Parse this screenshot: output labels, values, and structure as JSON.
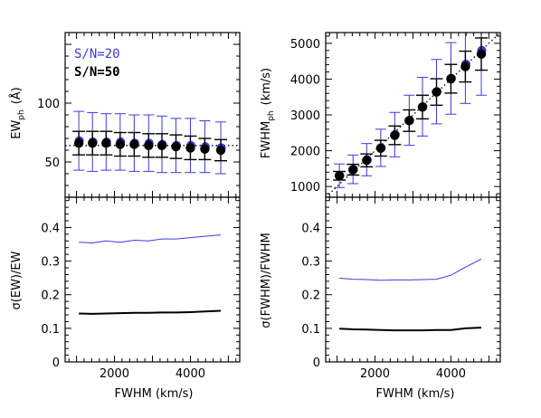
{
  "chart_data": [
    {
      "type": "scatter",
      "panel": "top-left",
      "ylabel_main": "EW",
      "ylabel_sub": "ph",
      "ylabel_unit": "(Å)",
      "xlim": [
        700,
        5300
      ],
      "ylim": [
        20,
        160
      ],
      "yticks": [
        50,
        100
      ],
      "reference_line": {
        "style": "dotted",
        "points": [
          [
            700,
            64
          ],
          [
            5300,
            64
          ]
        ]
      },
      "legend": [
        {
          "label": "S/N=20",
          "color": "#3a3ae0"
        },
        {
          "label": "S/N=50",
          "color": "#000000"
        }
      ],
      "series": [
        {
          "name": "S/N=20",
          "color": "#3a3ae0",
          "x": [
            1060,
            1420,
            1780,
            2150,
            2520,
            2900,
            3250,
            3620,
            4000,
            4380,
            4800
          ],
          "y": [
            68,
            67,
            67,
            67,
            66,
            66,
            65,
            64,
            64,
            63,
            62
          ],
          "yerr": [
            25,
            25,
            24,
            24,
            24,
            24,
            24,
            23,
            23,
            22,
            22
          ]
        },
        {
          "name": "S/N=50",
          "color": "#000000",
          "x": [
            1060,
            1420,
            1780,
            2150,
            2520,
            2900,
            3250,
            3620,
            4000,
            4380,
            4800
          ],
          "y": [
            66,
            66,
            66,
            65,
            65,
            64,
            64,
            63,
            62,
            61,
            60
          ],
          "yerr": [
            10,
            10,
            10,
            10,
            10,
            10,
            10,
            10,
            10,
            9,
            9
          ]
        }
      ]
    },
    {
      "type": "scatter",
      "panel": "top-right",
      "ylabel_main": "FWHM",
      "ylabel_sub": "ph",
      "ylabel_unit": "(km/s)",
      "xlim": [
        700,
        5300
      ],
      "ylim": [
        700,
        5300
      ],
      "yticks": [
        1000,
        2000,
        3000,
        4000,
        5000
      ],
      "reference_line": {
        "style": "dotted",
        "points": [
          [
            700,
            700
          ],
          [
            5300,
            5300
          ]
        ]
      },
      "series": [
        {
          "name": "S/N=20",
          "color": "#3a3ae0",
          "x": [
            1060,
            1420,
            1780,
            2150,
            2520,
            2900,
            3250,
            3620,
            4000,
            4380,
            4800
          ],
          "y": [
            1300,
            1480,
            1750,
            2080,
            2450,
            2850,
            3230,
            3650,
            4020,
            4420,
            4800
          ],
          "yerr": [
            330,
            400,
            450,
            520,
            620,
            700,
            820,
            900,
            1000,
            1100,
            1250
          ]
        },
        {
          "name": "S/N=50",
          "color": "#000000",
          "x": [
            1060,
            1420,
            1780,
            2150,
            2520,
            2900,
            3250,
            3620,
            4000,
            4380,
            4800
          ],
          "y": [
            1300,
            1470,
            1730,
            2070,
            2430,
            2840,
            3220,
            3640,
            4010,
            4350,
            4700
          ],
          "yerr": [
            120,
            150,
            180,
            220,
            260,
            300,
            330,
            370,
            400,
            430,
            450
          ]
        }
      ]
    },
    {
      "type": "line",
      "panel": "bottom-left",
      "ylabel": "σ(EW)/EW",
      "xlabel": "FWHM  (km/s)",
      "xlim": [
        700,
        5300
      ],
      "ylim": [
        0,
        0.49
      ],
      "xticks": [
        2000,
        4000
      ],
      "yticks": [
        0,
        0.1,
        0.2,
        0.3,
        0.4
      ],
      "series": [
        {
          "name": "S/N=20",
          "color": "#3a3ae0",
          "x": [
            1060,
            1420,
            1780,
            2150,
            2520,
            2900,
            3250,
            3620,
            4000,
            4380,
            4800
          ],
          "y": [
            0.356,
            0.354,
            0.36,
            0.356,
            0.362,
            0.36,
            0.366,
            0.366,
            0.37,
            0.374,
            0.378
          ]
        },
        {
          "name": "S/N=50",
          "color": "#000000",
          "x": [
            1060,
            1420,
            1780,
            2150,
            2520,
            2900,
            3250,
            3620,
            4000,
            4380,
            4800
          ],
          "y": [
            0.144,
            0.143,
            0.144,
            0.145,
            0.146,
            0.146,
            0.147,
            0.147,
            0.148,
            0.15,
            0.152
          ]
        }
      ]
    },
    {
      "type": "line",
      "panel": "bottom-right",
      "ylabel": "σ(FWHM)/FWHM",
      "xlabel": "FWHM  (km/s)",
      "xlim": [
        700,
        5300
      ],
      "ylim": [
        0,
        0.49
      ],
      "xticks": [
        2000,
        4000
      ],
      "yticks": [
        0,
        0.1,
        0.2,
        0.3,
        0.4
      ],
      "series": [
        {
          "name": "S/N=20",
          "color": "#3a3ae0",
          "x": [
            1060,
            1420,
            1780,
            2150,
            2520,
            2900,
            3250,
            3620,
            4000,
            4380,
            4800
          ],
          "y": [
            0.249,
            0.246,
            0.245,
            0.243,
            0.244,
            0.244,
            0.245,
            0.246,
            0.258,
            0.282,
            0.306
          ]
        },
        {
          "name": "S/N=50",
          "color": "#000000",
          "x": [
            1060,
            1420,
            1780,
            2150,
            2520,
            2900,
            3250,
            3620,
            4000,
            4380,
            4800
          ],
          "y": [
            0.099,
            0.097,
            0.096,
            0.095,
            0.094,
            0.094,
            0.094,
            0.095,
            0.095,
            0.1,
            0.102
          ]
        }
      ]
    }
  ]
}
